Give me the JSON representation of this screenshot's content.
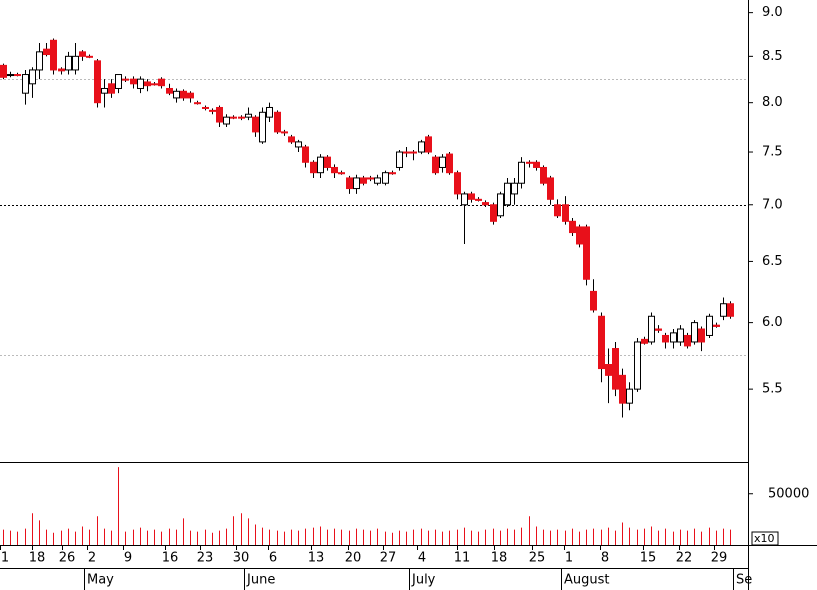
{
  "chart_data": {
    "type": "candlestick",
    "open": [
      8.4,
      8.3,
      8.3,
      8.1,
      8.2,
      8.35,
      8.58,
      8.68,
      8.36,
      8.35,
      8.35,
      8.55,
      8.5,
      8.45,
      8.1,
      8.2,
      8.15,
      8.25,
      8.25,
      8.15,
      8.22,
      8.2,
      8.25,
      8.15,
      8.05,
      8.12,
      8.1,
      8.0,
      7.95,
      7.92,
      7.95,
      7.78,
      7.85,
      7.85,
      7.85,
      7.85,
      7.6,
      7.85,
      7.9,
      7.7,
      7.65,
      7.55,
      7.55,
      7.4,
      7.3,
      7.45,
      7.35,
      7.3,
      7.25,
      7.15,
      7.25,
      7.25,
      7.2,
      7.2,
      7.3,
      7.35,
      7.5,
      7.5,
      7.5,
      7.65,
      7.45,
      7.35,
      7.48,
      7.3,
      7.0,
      7.1,
      7.05,
      7.02,
      7.0,
      6.9,
      7.0,
      7.1,
      7.2,
      7.4,
      7.4,
      7.35,
      7.25,
      7.0,
      7.0,
      6.85,
      6.8,
      6.8,
      6.25,
      6.05,
      5.68,
      5.8,
      5.6,
      5.4,
      5.5,
      5.87,
      5.85,
      5.95,
      5.9,
      5.85,
      5.85,
      5.9,
      5.85,
      5.95,
      5.9,
      5.98,
      6.05,
      6.15
    ],
    "high": [
      8.42,
      8.33,
      8.32,
      8.35,
      8.38,
      8.65,
      8.65,
      8.7,
      8.38,
      8.55,
      8.65,
      8.57,
      8.52,
      8.47,
      8.25,
      8.25,
      8.3,
      8.28,
      8.28,
      8.28,
      8.25,
      8.22,
      8.27,
      8.2,
      8.15,
      8.14,
      8.12,
      8.02,
      7.97,
      7.94,
      7.97,
      7.88,
      7.87,
      7.87,
      7.95,
      7.87,
      7.95,
      8.0,
      7.92,
      7.72,
      7.67,
      7.62,
      7.57,
      7.42,
      7.48,
      7.47,
      7.38,
      7.32,
      7.27,
      7.28,
      7.27,
      7.27,
      7.28,
      7.32,
      7.32,
      7.52,
      7.55,
      7.52,
      7.62,
      7.67,
      7.47,
      7.48,
      7.5,
      7.32,
      7.12,
      7.12,
      7.07,
      7.04,
      7.02,
      7.12,
      7.25,
      7.25,
      7.45,
      7.42,
      7.42,
      7.37,
      7.27,
      7.05,
      7.08,
      6.88,
      6.82,
      6.82,
      6.35,
      6.08,
      5.8,
      5.85,
      5.65,
      5.55,
      5.88,
      5.89,
      6.08,
      5.98,
      5.92,
      5.95,
      5.98,
      5.92,
      6.02,
      5.97,
      6.07,
      6.0,
      6.2,
      6.17
    ],
    "low": [
      8.25,
      8.27,
      8.28,
      7.98,
      8.05,
      8.25,
      8.5,
      8.3,
      8.3,
      8.3,
      8.3,
      8.45,
      8.48,
      7.95,
      7.95,
      8.05,
      8.1,
      8.22,
      8.15,
      8.1,
      8.12,
      8.18,
      8.15,
      8.08,
      8.0,
      8.02,
      8.0,
      7.98,
      7.92,
      7.88,
      7.75,
      7.75,
      7.83,
      7.82,
      7.82,
      7.65,
      7.58,
      7.8,
      7.68,
      7.66,
      7.58,
      7.5,
      7.35,
      7.25,
      7.25,
      7.32,
      7.25,
      7.28,
      7.1,
      7.1,
      7.18,
      7.22,
      7.18,
      7.18,
      7.28,
      7.32,
      7.45,
      7.42,
      7.48,
      7.48,
      7.28,
      7.3,
      7.28,
      7.05,
      6.65,
      7.02,
      7.03,
      6.98,
      6.82,
      6.88,
      6.98,
      7.0,
      7.15,
      7.35,
      7.32,
      7.18,
      7.0,
      6.88,
      6.82,
      6.72,
      6.62,
      6.3,
      6.08,
      5.55,
      5.4,
      5.45,
      5.3,
      5.35,
      5.48,
      5.83,
      5.83,
      5.92,
      5.8,
      5.8,
      5.82,
      5.8,
      5.83,
      5.78,
      5.88,
      5.96,
      6.02,
      6.03
    ],
    "close": [
      8.27,
      8.3,
      8.29,
      8.3,
      8.35,
      8.55,
      8.52,
      8.35,
      8.34,
      8.5,
      8.5,
      8.5,
      8.49,
      8.0,
      8.15,
      8.1,
      8.3,
      8.24,
      8.2,
      8.25,
      8.18,
      8.19,
      8.18,
      8.1,
      8.12,
      8.05,
      8.05,
      7.99,
      7.94,
      7.91,
      7.8,
      7.85,
      7.84,
      7.84,
      7.88,
      7.7,
      7.9,
      7.95,
      7.7,
      7.69,
      7.6,
      7.6,
      7.4,
      7.3,
      7.45,
      7.35,
      7.3,
      7.29,
      7.15,
      7.25,
      7.2,
      7.24,
      7.25,
      7.3,
      7.29,
      7.5,
      7.49,
      7.49,
      7.6,
      7.5,
      7.3,
      7.45,
      7.3,
      7.1,
      7.1,
      7.05,
      7.04,
      7.0,
      6.85,
      7.1,
      7.2,
      7.2,
      7.4,
      7.39,
      7.35,
      7.2,
      7.05,
      6.9,
      6.85,
      6.75,
      6.65,
      6.35,
      6.1,
      5.65,
      5.6,
      5.5,
      5.4,
      5.5,
      5.85,
      5.84,
      6.05,
      5.94,
      5.85,
      5.92,
      5.95,
      5.82,
      6.0,
      5.85,
      6.05,
      5.97,
      6.15,
      6.05
    ],
    "volume": [
      15000,
      14000,
      13000,
      16000,
      31000,
      24000,
      15000,
      12000,
      14000,
      16000,
      13000,
      18000,
      15000,
      28000,
      16000,
      14000,
      76000,
      13000,
      15000,
      17000,
      14000,
      15000,
      13000,
      16000,
      15000,
      26000,
      14000,
      13000,
      15000,
      12000,
      14000,
      16000,
      28000,
      31000,
      26000,
      20000,
      17000,
      15000,
      14000,
      13000,
      15000,
      14000,
      16000,
      17000,
      18000,
      15000,
      16000,
      15000,
      14000,
      16000,
      15000,
      14000,
      16000,
      13000,
      12000,
      14000,
      13000,
      15000,
      16000,
      14000,
      15000,
      13000,
      14000,
      15000,
      17000,
      14000,
      13000,
      15000,
      16000,
      14000,
      16000,
      15000,
      17000,
      28000,
      18000,
      15000,
      14000,
      15000,
      14000,
      16000,
      13000,
      15000,
      16000,
      15000,
      17000,
      14000,
      22000,
      17000,
      15000,
      16000,
      18000,
      14000,
      16000,
      13000,
      15000,
      14000,
      16000,
      13000,
      17000,
      14000,
      16000,
      15000
    ],
    "up_color": "#ffffff",
    "down_color": "#e8101a",
    "volume_color": "#e8101a",
    "log_scale": true,
    "ylim": [
      5.0,
      9.15
    ],
    "yticks": [
      5.5,
      {
        "value": 6.0,
        "label": "6.0"
      },
      6.5,
      {
        "value": 7.0,
        "label": "7.0"
      },
      7.5,
      {
        "value": 8.0,
        "label": "8.0"
      },
      8.5,
      {
        "value": 9.0,
        "label": "9.0"
      }
    ],
    "volume_ylim": [
      0,
      80000
    ],
    "volume_yticks": [
      50000
    ],
    "volume_unit": "x10",
    "reference_lines": [
      {
        "value": 8.25,
        "color": "#bbbbbb"
      },
      {
        "value": 7.0,
        "color": "#000000"
      },
      {
        "value": 5.75,
        "color": "#bbbbbb"
      }
    ],
    "day_labels": [
      "1",
      "18",
      "26",
      "2",
      "9",
      "16",
      "23",
      "30",
      "6",
      "13",
      "20",
      "27",
      "4",
      "11",
      "18",
      "25",
      "1",
      "8",
      "15",
      "22",
      "29"
    ],
    "month_labels": [
      "May",
      "June",
      "July",
      "August",
      "Se"
    ]
  }
}
